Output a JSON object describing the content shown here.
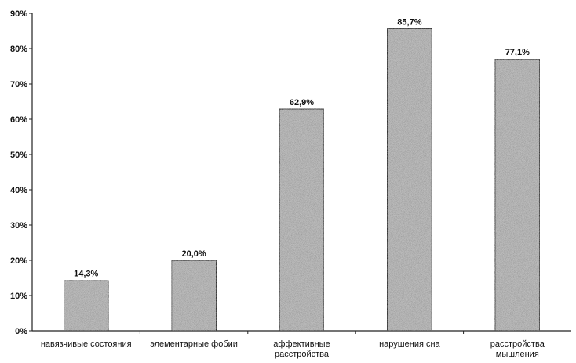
{
  "chart_data": {
    "type": "bar",
    "title": "",
    "xlabel": "",
    "ylabel": "",
    "ylim": [
      0,
      90
    ],
    "yticks": [
      0,
      10,
      20,
      30,
      40,
      50,
      60,
      70,
      80,
      90
    ],
    "ytick_labels": [
      "0%",
      "10%",
      "20%",
      "30%",
      "40%",
      "50%",
      "60%",
      "70%",
      "80%",
      "90%"
    ],
    "categories": [
      [
        "навязчивые состояния"
      ],
      [
        "элементарные фобии"
      ],
      [
        "аффективные",
        "расстройства"
      ],
      [
        "нарушения сна"
      ],
      [
        "расстройства",
        "мышления"
      ]
    ],
    "values": [
      14.3,
      20.0,
      62.9,
      85.7,
      77.1
    ],
    "data_labels": [
      "14,3%",
      "20,0%",
      "62,9%",
      "85,7%",
      "77,1%"
    ],
    "grid": false,
    "legend": "none",
    "bar_fill": "#bdbdbd",
    "bar_stroke": "#222222"
  }
}
